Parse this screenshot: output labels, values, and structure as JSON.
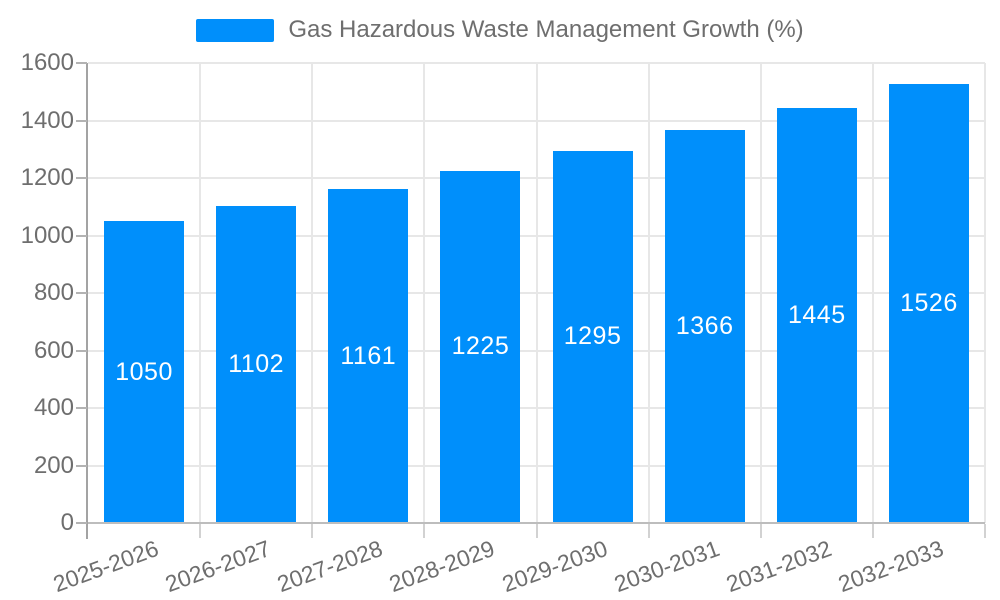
{
  "legend": {
    "series_label": "Gas Hazardous Waste Management Growth (%)"
  },
  "colors": {
    "bar": "#008ffb",
    "grid": "#e7e7e7",
    "axis": "#a3a3a3",
    "tick_label": "#6e6e6e",
    "value_label": "#ffffff",
    "background": "#ffffff"
  },
  "chart_data": {
    "type": "bar",
    "title": "Gas Hazardous Waste Management Growth (%)",
    "categories": [
      "2025-2026",
      "2026-2027",
      "2027-2028",
      "2028-2029",
      "2029-2030",
      "2030-2031",
      "2031-2032",
      "2032-2033"
    ],
    "values": [
      1050,
      1102,
      1161,
      1225,
      1295,
      1366,
      1445,
      1526
    ],
    "value_labels_position": "inside-center",
    "xlabel": "",
    "ylabel": "",
    "ylim": [
      0,
      1600
    ],
    "yticks": [
      0,
      200,
      400,
      600,
      800,
      1000,
      1200,
      1400,
      1600
    ],
    "grid": "both",
    "legend_position": "top",
    "xlabel_rotation_deg": -20,
    "bar_color": "#008ffb"
  }
}
